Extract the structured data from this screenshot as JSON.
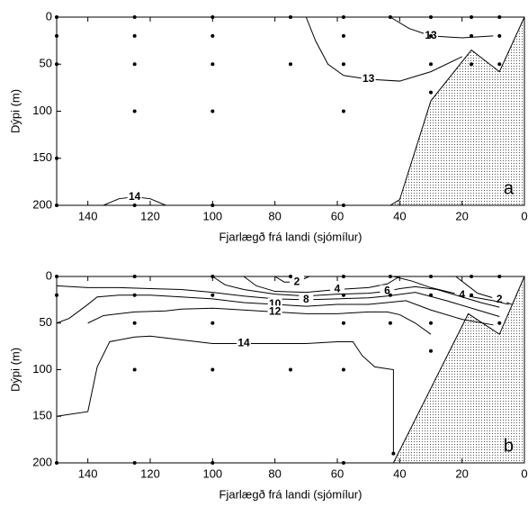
{
  "chart_data": [
    {
      "type": "contour",
      "panel_label": "a",
      "xlabel": "Fjarlægð frá landi (sjómílur)",
      "ylabel": "Dýpi (m)",
      "xlim": [
        150,
        0
      ],
      "ylim": [
        0,
        200
      ],
      "xticks": [
        140,
        120,
        100,
        80,
        60,
        40,
        20,
        0
      ],
      "yticks": [
        0,
        50,
        100,
        150,
        200
      ],
      "stations": {
        "x": [
          150,
          125,
          100,
          75,
          58,
          43,
          30,
          17,
          8,
          150,
          125,
          100,
          58,
          30,
          17,
          8,
          150,
          125,
          100,
          75,
          58,
          30,
          17,
          8,
          125,
          100,
          58,
          30,
          150,
          150,
          125,
          100,
          58
        ],
        "y": [
          0,
          0,
          0,
          0,
          0,
          0,
          0,
          0,
          0,
          20,
          20,
          20,
          20,
          20,
          20,
          20,
          50,
          50,
          50,
          50,
          50,
          50,
          50,
          50,
          100,
          100,
          100,
          80,
          150,
          200,
          200,
          200,
          200
        ]
      },
      "contours": [
        {
          "level": 13,
          "x": [
            43,
            37,
            30,
            20,
            10
          ],
          "y": [
            0,
            12,
            20,
            22,
            20
          ]
        },
        {
          "level": 13,
          "x": [
            70,
            67,
            63,
            58,
            50,
            40,
            30,
            20
          ],
          "y": [
            0,
            25,
            50,
            62,
            66,
            68,
            58,
            42
          ]
        },
        {
          "level": 14,
          "x": [
            135,
            130,
            125,
            120,
            115
          ],
          "y": [
            200,
            193,
            191,
            193,
            200
          ]
        }
      ],
      "seabed": {
        "x": [
          43,
          40,
          30,
          17,
          8,
          0
        ],
        "y": [
          200,
          194,
          89,
          35,
          58,
          0
        ]
      }
    },
    {
      "type": "contour",
      "panel_label": "b",
      "xlabel": "Fjarlægð frá landi (sjómílur)",
      "ylabel": "Dýpi (m)",
      "xlim": [
        150,
        0
      ],
      "ylim": [
        0,
        200
      ],
      "xticks": [
        140,
        120,
        100,
        80,
        60,
        40,
        20,
        0
      ],
      "yticks": [
        0,
        50,
        100,
        150,
        200
      ],
      "stations": {
        "x": [
          150,
          125,
          100,
          75,
          58,
          43,
          30,
          17,
          8,
          150,
          125,
          100,
          58,
          43,
          30,
          17,
          125,
          100,
          58,
          43,
          30,
          8,
          125,
          100,
          75,
          58,
          30,
          42,
          150,
          125,
          100,
          58
        ],
        "y": [
          0,
          0,
          0,
          0,
          0,
          0,
          0,
          0,
          0,
          20,
          20,
          20,
          20,
          20,
          20,
          20,
          50,
          50,
          50,
          50,
          50,
          50,
          100,
          100,
          100,
          100,
          80,
          190,
          200,
          200,
          200,
          200
        ]
      },
      "contours": [
        {
          "level": 2,
          "x": [
            80,
            77,
            73,
            69
          ],
          "y": [
            0,
            6,
            6,
            0
          ]
        },
        {
          "level": 2,
          "x": [
            22,
            15,
            8,
            4
          ],
          "y": [
            0,
            18,
            25,
            30
          ]
        },
        {
          "level": 4,
          "x": [
            90,
            86,
            80,
            70,
            60,
            50,
            44,
            40
          ],
          "y": [
            0,
            10,
            16,
            17,
            14,
            12,
            8,
            0
          ]
        },
        {
          "level": 4,
          "x": [
            42,
            36,
            30,
            20,
            10,
            5
          ],
          "y": [
            0,
            5,
            12,
            20,
            26,
            30
          ]
        },
        {
          "level": 6,
          "x": [
            100,
            96,
            90,
            80,
            70,
            60,
            50,
            44,
            40,
            35,
            28,
            20,
            14,
            8
          ],
          "y": [
            0,
            9,
            14,
            19,
            21,
            19,
            18,
            16,
            13,
            11,
            14,
            22,
            28,
            33
          ]
        },
        {
          "level": 8,
          "x": [
            150,
            140,
            130,
            120,
            110,
            100,
            90,
            80,
            70,
            60,
            50,
            44,
            35,
            25,
            15,
            8
          ],
          "y": [
            10,
            12,
            12,
            13,
            14,
            17,
            21,
            24,
            25,
            24,
            23,
            21,
            17,
            26,
            36,
            43
          ]
        },
        {
          "level": 10,
          "x": [
            150,
            146,
            140,
            137,
            130,
            120,
            110,
            100,
            90,
            80,
            70,
            60,
            50,
            44,
            38,
            30,
            20,
            10
          ],
          "y": [
            50,
            45,
            30,
            22,
            20,
            20,
            22,
            24,
            28,
            30,
            32,
            30,
            30,
            28,
            26,
            36,
            46,
            52
          ]
        },
        {
          "level": 12,
          "x": [
            140,
            135,
            125,
            115,
            110,
            100,
            90,
            80,
            70,
            60,
            50,
            44,
            40,
            35,
            30
          ],
          "y": [
            50,
            42,
            38,
            37,
            35,
            34,
            36,
            38,
            40,
            40,
            38,
            38,
            41,
            50,
            62
          ]
        },
        {
          "level": 14,
          "x": [
            150,
            140,
            137,
            133,
            125,
            120,
            110,
            100,
            90,
            80,
            70,
            60,
            55,
            52,
            48,
            42,
            42
          ],
          "y": [
            150,
            145,
            97,
            70,
            65,
            64,
            68,
            72,
            72,
            72,
            72,
            70,
            70,
            85,
            97,
            100,
            190
          ]
        }
      ],
      "seabed": {
        "x": [
          42,
          30,
          18,
          8,
          0
        ],
        "y": [
          200,
          120,
          40,
          62,
          0
        ]
      }
    }
  ]
}
